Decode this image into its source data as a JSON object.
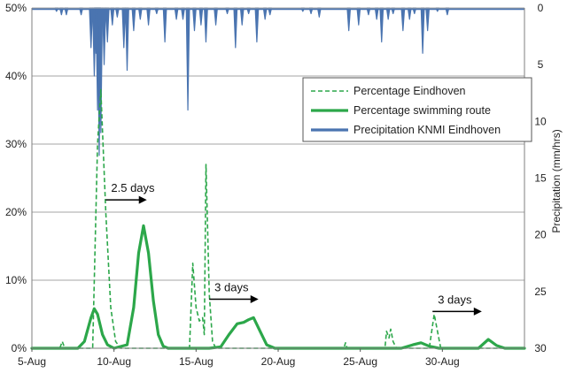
{
  "chart_data": {
    "type": "line",
    "x_tick_labels": [
      "5-Aug",
      "10-Aug",
      "15-Aug",
      "20-Aug",
      "25-Aug",
      "30-Aug"
    ],
    "y_left_tick_labels": [
      "0%",
      "10%",
      "20%",
      "30%",
      "40%",
      "50%"
    ],
    "y_right_tick_labels": [
      "0",
      "5",
      "10",
      "15",
      "20",
      "25",
      "30"
    ],
    "y_right_label": "Precipitation (mm/hrs)",
    "ylim_left": [
      0,
      50
    ],
    "ylim_right": [
      30,
      0
    ],
    "xlim_days": [
      5,
      35
    ],
    "grid": "horizontal",
    "legend_position": "right",
    "colors": {
      "dashed": "#2ca74a",
      "solid": "#2ca74a",
      "precip": "#4a74b0",
      "grid": "#a6a6a6"
    },
    "series": [
      {
        "name": "Percentage Eindhoven",
        "style": "dashed",
        "points": [
          [
            5,
            0
          ],
          [
            6.7,
            0
          ],
          [
            6.85,
            1
          ],
          [
            7,
            0
          ],
          [
            8.7,
            0
          ],
          [
            9.0,
            30
          ],
          [
            9.2,
            38
          ],
          [
            9.5,
            20
          ],
          [
            9.8,
            6
          ],
          [
            10.1,
            1
          ],
          [
            10.4,
            0
          ],
          [
            14.6,
            0
          ],
          [
            14.8,
            12.5
          ],
          [
            15.0,
            6
          ],
          [
            15.2,
            4
          ],
          [
            15.4,
            4.5
          ],
          [
            15.5,
            2
          ],
          [
            15.6,
            27
          ],
          [
            15.8,
            8
          ],
          [
            16.0,
            1
          ],
          [
            16.2,
            0
          ],
          [
            24.0,
            0
          ],
          [
            24.1,
            0.8
          ],
          [
            24.2,
            0
          ],
          [
            26.5,
            0
          ],
          [
            26.6,
            2.5
          ],
          [
            26.75,
            1.5
          ],
          [
            26.85,
            2.8
          ],
          [
            27.0,
            1
          ],
          [
            27.2,
            0
          ],
          [
            29.2,
            0
          ],
          [
            29.5,
            5
          ],
          [
            29.9,
            0
          ],
          [
            35,
            0
          ]
        ]
      },
      {
        "name": "Percentage swimming route",
        "style": "solid",
        "points": [
          [
            5,
            0
          ],
          [
            7.8,
            0
          ],
          [
            8.2,
            1
          ],
          [
            8.6,
            4.5
          ],
          [
            8.8,
            5.8
          ],
          [
            9.0,
            5
          ],
          [
            9.3,
            2
          ],
          [
            9.6,
            0.5
          ],
          [
            10.0,
            0
          ],
          [
            10.8,
            0.5
          ],
          [
            11.2,
            6
          ],
          [
            11.5,
            14
          ],
          [
            11.8,
            18
          ],
          [
            12.1,
            14
          ],
          [
            12.4,
            7
          ],
          [
            12.7,
            2
          ],
          [
            13.0,
            0.3
          ],
          [
            13.3,
            0
          ],
          [
            15.8,
            0
          ],
          [
            16.5,
            0.2
          ],
          [
            17.0,
            2
          ],
          [
            17.5,
            3.6
          ],
          [
            17.9,
            3.8
          ],
          [
            18.2,
            4.2
          ],
          [
            18.5,
            4.5
          ],
          [
            18.9,
            2.5
          ],
          [
            19.3,
            0.5
          ],
          [
            19.8,
            0
          ],
          [
            27.5,
            0
          ],
          [
            28.2,
            0.5
          ],
          [
            28.7,
            0.8
          ],
          [
            29.2,
            0.3
          ],
          [
            29.8,
            0
          ],
          [
            32.2,
            0
          ],
          [
            32.8,
            1.3
          ],
          [
            33.3,
            0.4
          ],
          [
            33.8,
            0
          ],
          [
            35,
            0
          ]
        ]
      },
      {
        "name": "Precipitation KNMI Eindhoven",
        "style": "bars-from-top",
        "points": [
          [
            6.5,
            0.3
          ],
          [
            6.8,
            0.6
          ],
          [
            7.1,
            0.6
          ],
          [
            8.0,
            0.6
          ],
          [
            8.6,
            3.5
          ],
          [
            8.8,
            6
          ],
          [
            8.9,
            4
          ],
          [
            9.0,
            9
          ],
          [
            9.1,
            13
          ],
          [
            9.2,
            11
          ],
          [
            9.4,
            5
          ],
          [
            9.6,
            3
          ],
          [
            9.9,
            1.5
          ],
          [
            10.2,
            0.8
          ],
          [
            10.6,
            3.5
          ],
          [
            10.8,
            5.5
          ],
          [
            11.2,
            2
          ],
          [
            11.6,
            1
          ],
          [
            12.1,
            1.5
          ],
          [
            12.6,
            0.5
          ],
          [
            13.1,
            3
          ],
          [
            13.8,
            1
          ],
          [
            14.2,
            1
          ],
          [
            14.5,
            9
          ],
          [
            14.9,
            2
          ],
          [
            15.3,
            1.5
          ],
          [
            15.6,
            3
          ],
          [
            16.2,
            1.5
          ],
          [
            16.9,
            0.5
          ],
          [
            17.4,
            3.5
          ],
          [
            17.8,
            1.5
          ],
          [
            18.2,
            0.5
          ],
          [
            18.7,
            3
          ],
          [
            19.2,
            1
          ],
          [
            19.5,
            0.6
          ],
          [
            21.5,
            0.3
          ],
          [
            22.0,
            0.5
          ],
          [
            22.5,
            0.8
          ],
          [
            24.3,
            2
          ],
          [
            24.9,
            1.5
          ],
          [
            25.5,
            0.6
          ],
          [
            26.0,
            1
          ],
          [
            26.3,
            3
          ],
          [
            26.7,
            1
          ],
          [
            27.0,
            0.5
          ],
          [
            27.6,
            2
          ],
          [
            28.0,
            1
          ],
          [
            28.3,
            0.5
          ],
          [
            28.8,
            4
          ],
          [
            29.1,
            2
          ],
          [
            29.7,
            0.3
          ],
          [
            30.3,
            0.6
          ]
        ]
      }
    ],
    "annotations": [
      {
        "text": "2.5 days",
        "x_from": 9.5,
        "x_to": 12.0,
        "y": 21.8
      },
      {
        "text": "3 days",
        "x_from": 15.8,
        "x_to": 18.8,
        "y": 7.2
      },
      {
        "text": "3 days",
        "x_from": 29.4,
        "x_to": 32.4,
        "y": 5.4
      }
    ]
  }
}
